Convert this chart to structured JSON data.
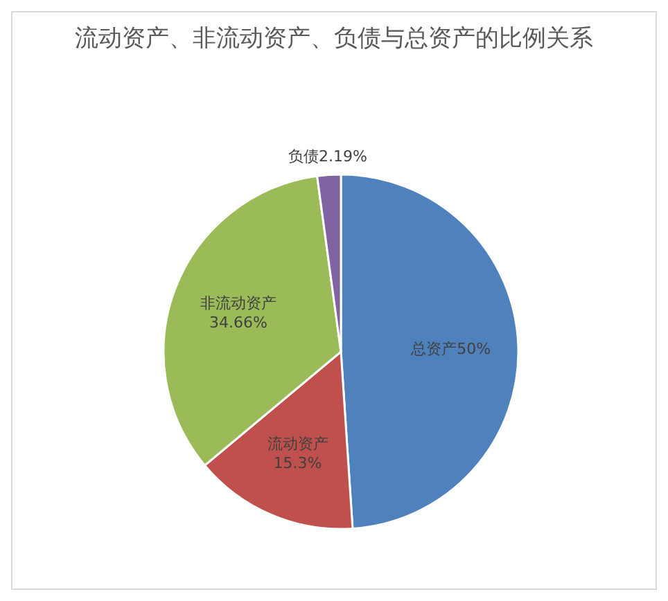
{
  "chart_data": {
    "type": "pie",
    "title": "流动资产、非流动资产、负债与总资产的比例关系",
    "categories": [
      "总资产",
      "流动资产",
      "非流动资产",
      "负债"
    ],
    "values": [
      50,
      15.3,
      34.66,
      2.19
    ],
    "colors": [
      "#4f81bd",
      "#c0504d",
      "#9bbb59",
      "#8064a2"
    ],
    "value_labels": [
      "50%",
      "15.3%",
      "34.66%",
      "2.19%"
    ]
  }
}
